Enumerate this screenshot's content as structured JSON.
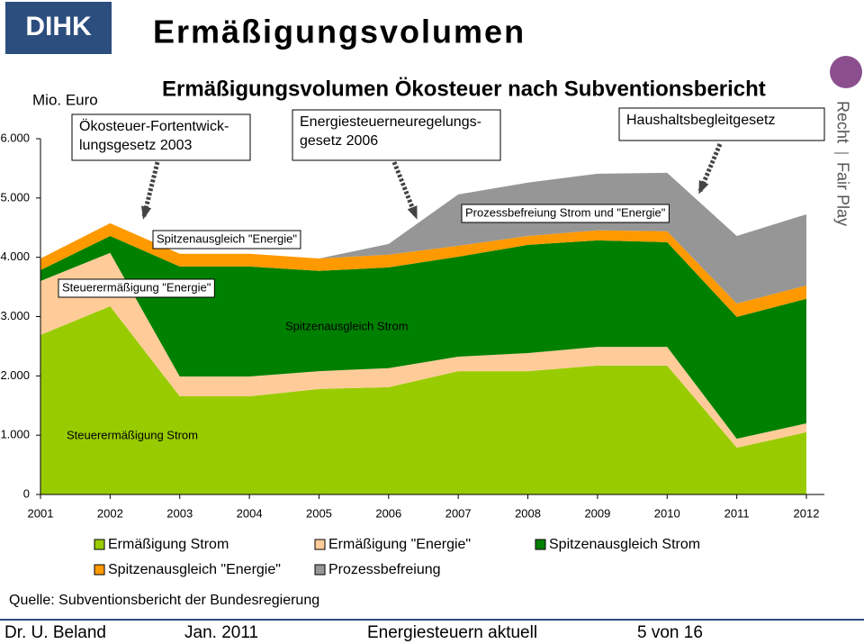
{
  "slide": {
    "logo": "DIHK",
    "heading": "Ermäßigungsvolumen",
    "side_text": [
      "Recht",
      "Fair Play"
    ],
    "source": "Quelle: Subventionsbericht der Bundesregierung",
    "footer": [
      "Dr. U. Beland",
      "Jan. 2011",
      "Energiesteuern aktuell",
      "5 von 16"
    ]
  },
  "chart_data": {
    "type": "stacked-area",
    "title": "Ermäßigungsvolumen Ökosteuer nach Subventionsbericht",
    "y_label": "Mio. Euro",
    "categories": [
      "2001",
      "2002",
      "2003",
      "2004",
      "2005",
      "2006",
      "2007",
      "2008",
      "2009",
      "2010",
      "2011",
      "2012"
    ],
    "ylim": [
      0,
      6000
    ],
    "yticks": [
      0,
      {
        "value": 1000,
        "label": "1.000"
      },
      {
        "value": 2000,
        "label": "2.000"
      },
      {
        "value": 3000,
        "label": "3.000"
      },
      {
        "value": 4000,
        "label": "4.000"
      },
      {
        "value": 5000,
        "label": "5.000"
      },
      {
        "value": 6000,
        "label": "6.000"
      }
    ],
    "series": [
      {
        "name": "Ermäßigung Strom",
        "color": "#99cc00",
        "values": [
          2690,
          3175,
          1655,
          1655,
          1780,
          1810,
          2080,
          2080,
          2175,
          2175,
          790,
          1050
        ]
      },
      {
        "name": "Ermäßigung \"Energie\"",
        "color": "#ffcc99",
        "values": [
          910,
          900,
          335,
          335,
          300,
          320,
          245,
          305,
          315,
          315,
          150,
          150
        ]
      },
      {
        "name": "Spitzenausgleich Strom",
        "color": "#008000",
        "values": [
          185,
          285,
          1855,
          1855,
          1690,
          1700,
          1685,
          1825,
          1795,
          1765,
          2055,
          2100
        ]
      },
      {
        "name": "Spitzenausgleich \"Energie\"",
        "color": "#ff9900",
        "values": [
          195,
          215,
          215,
          215,
          210,
          215,
          185,
          150,
          170,
          185,
          225,
          225
        ]
      },
      {
        "name": "Prozessbefreiung",
        "color": "#969696",
        "values": [
          0,
          0,
          0,
          0,
          0,
          180,
          865,
          900,
          955,
          985,
          1140,
          1200
        ]
      }
    ],
    "annotations": [
      {
        "lines": [
          "Ökosteuer-Fortentwick-",
          "lungsgesetz 2003"
        ]
      },
      {
        "lines": [
          "Energiesteuerneuregelungs-",
          "gesetz 2006"
        ]
      },
      {
        "lines": [
          "Haushaltsbegleitgesetz"
        ]
      }
    ],
    "area_labels": [
      "Spitzenausgleich \"Energie\"",
      "Steuerermäßigung \"Energie\"",
      "Prozessbefreiung Strom und \"Energie\"",
      "Spitzenausgleich Strom",
      "Steuerermäßigung Strom"
    ]
  }
}
